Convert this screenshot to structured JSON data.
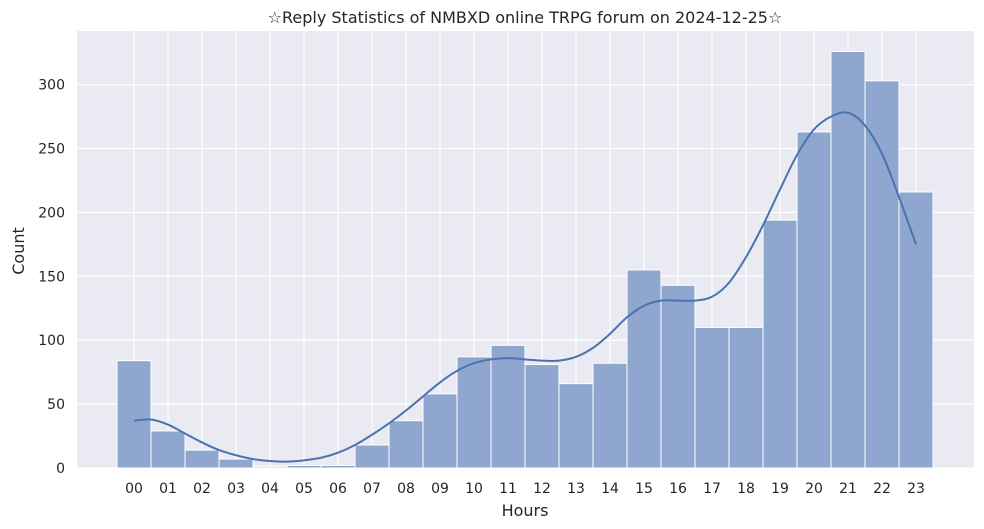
{
  "chart_data": {
    "type": "bar",
    "title": "☆Reply Statistics of NMBXD online TRPG forum on 2024-12-25☆",
    "xlabel": "Hours",
    "ylabel": "Count",
    "categories": [
      "00",
      "01",
      "02",
      "03",
      "04",
      "05",
      "06",
      "07",
      "08",
      "09",
      "10",
      "11",
      "12",
      "13",
      "14",
      "15",
      "16",
      "17",
      "18",
      "19",
      "20",
      "21",
      "22",
      "23"
    ],
    "values": [
      84,
      29,
      14,
      7,
      1,
      2,
      2,
      18,
      37,
      58,
      87,
      96,
      81,
      66,
      82,
      155,
      143,
      110,
      110,
      194,
      263,
      326,
      303,
      216
    ],
    "kde": [
      {
        "x": 0,
        "y": 37
      },
      {
        "x": 0.5,
        "y": 38
      },
      {
        "x": 1,
        "y": 34
      },
      {
        "x": 1.5,
        "y": 27
      },
      {
        "x": 2,
        "y": 20
      },
      {
        "x": 2.5,
        "y": 14
      },
      {
        "x": 3,
        "y": 10
      },
      {
        "x": 3.5,
        "y": 7
      },
      {
        "x": 4,
        "y": 5.5
      },
      {
        "x": 4.5,
        "y": 5
      },
      {
        "x": 5,
        "y": 6
      },
      {
        "x": 5.5,
        "y": 8
      },
      {
        "x": 6,
        "y": 12
      },
      {
        "x": 6.5,
        "y": 18
      },
      {
        "x": 7,
        "y": 26
      },
      {
        "x": 7.5,
        "y": 35
      },
      {
        "x": 8,
        "y": 45
      },
      {
        "x": 8.5,
        "y": 56
      },
      {
        "x": 9,
        "y": 67
      },
      {
        "x": 9.5,
        "y": 76
      },
      {
        "x": 10,
        "y": 82
      },
      {
        "x": 10.5,
        "y": 85
      },
      {
        "x": 11,
        "y": 86
      },
      {
        "x": 11.5,
        "y": 85
      },
      {
        "x": 12,
        "y": 84
      },
      {
        "x": 12.5,
        "y": 84
      },
      {
        "x": 13,
        "y": 87
      },
      {
        "x": 13.5,
        "y": 94
      },
      {
        "x": 14,
        "y": 105
      },
      {
        "x": 14.5,
        "y": 118
      },
      {
        "x": 15,
        "y": 127
      },
      {
        "x": 15.5,
        "y": 131
      },
      {
        "x": 16,
        "y": 131
      },
      {
        "x": 16.5,
        "y": 131
      },
      {
        "x": 17,
        "y": 134
      },
      {
        "x": 17.5,
        "y": 145
      },
      {
        "x": 18,
        "y": 165
      },
      {
        "x": 18.5,
        "y": 190
      },
      {
        "x": 19,
        "y": 218
      },
      {
        "x": 19.5,
        "y": 245
      },
      {
        "x": 20,
        "y": 265
      },
      {
        "x": 20.5,
        "y": 275
      },
      {
        "x": 21,
        "y": 278
      },
      {
        "x": 21.5,
        "y": 268
      },
      {
        "x": 22,
        "y": 246
      },
      {
        "x": 22.5,
        "y": 212
      },
      {
        "x": 23,
        "y": 175
      }
    ],
    "ylim": [
      0,
      342
    ],
    "yticks": [
      0,
      50,
      100,
      150,
      200,
      250,
      300
    ],
    "grid": true,
    "colors": {
      "bar_fill": "#8fa7cf",
      "bar_edge": "#ffffff",
      "kde_line": "#4c72b0",
      "plot_bg": "#eaeaf2",
      "grid": "#ffffff"
    }
  }
}
